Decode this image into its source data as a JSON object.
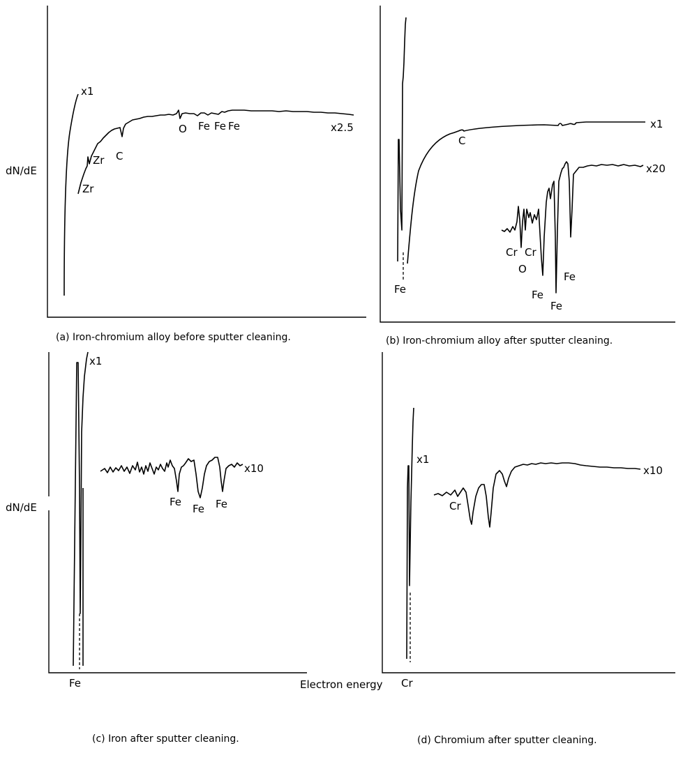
{
  "chart_data": [
    {
      "panel": "a",
      "type": "line",
      "caption": "(a) Iron-chromium alloy before sputter cleaning.",
      "ylabel": "dN/dE",
      "xlabel": "",
      "traces": [
        {
          "scale": "x1"
        },
        {
          "scale": "x2.5"
        }
      ],
      "peak_labels": [
        "Zr",
        "Zr",
        "C",
        "O",
        "Fe",
        "Fe",
        "Fe"
      ]
    },
    {
      "panel": "b",
      "type": "line",
      "caption": "(b) Iron-chromium alloy after sputter cleaning.",
      "ylabel": "",
      "xlabel": "",
      "traces": [
        {
          "scale": "x1"
        },
        {
          "scale": "x20"
        }
      ],
      "peak_labels": [
        "Fe",
        "C",
        "Cr",
        "Cr",
        "O",
        "Fe",
        "Fe",
        "Fe"
      ]
    },
    {
      "panel": "c",
      "type": "line",
      "caption": "(c) Iron after sputter cleaning.",
      "ylabel": "dN/dE",
      "xlabel": "",
      "traces": [
        {
          "scale": "x1"
        },
        {
          "scale": "x10"
        }
      ],
      "peak_labels": [
        "Fe",
        "Fe",
        "Fe",
        "Fe"
      ]
    },
    {
      "panel": "d",
      "type": "line",
      "caption": "(d) Chromium after sputter cleaning.",
      "ylabel": "",
      "xlabel": "",
      "traces": [
        {
          "scale": "x1"
        },
        {
          "scale": "x10"
        }
      ],
      "peak_labels": [
        "Cr",
        "Cr"
      ]
    }
  ],
  "shared_xlabel": "Electron energy"
}
